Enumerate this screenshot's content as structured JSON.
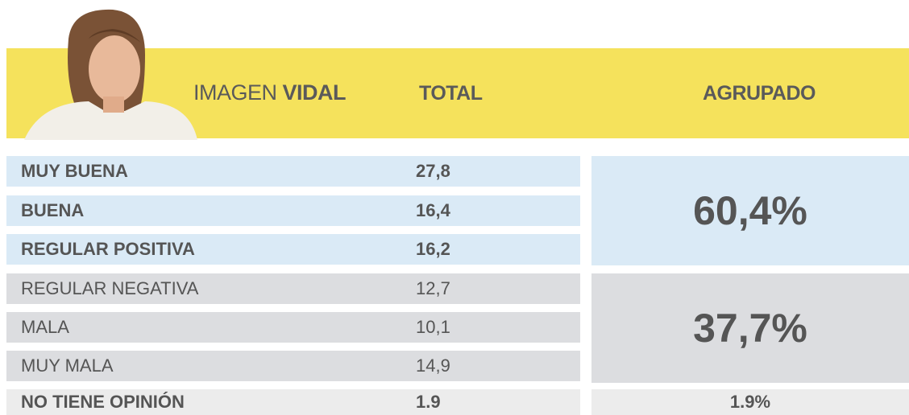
{
  "header": {
    "title_light": "IMAGEN",
    "title_bold": "VIDAL",
    "col_total": "TOTAL",
    "col_grouped": "AGRUPADO"
  },
  "table": {
    "rows": [
      [
        "MUY BUENA",
        "27,8"
      ],
      [
        "BUENA",
        "16,4"
      ],
      [
        "REGULAR POSITIVA",
        "16,2"
      ],
      [
        "REGULAR NEGATIVA",
        "12,7"
      ],
      [
        "MALA",
        "10,1"
      ],
      [
        "MUY MALA",
        "14,9"
      ],
      [
        "NO TIENE OPINIÓN",
        "1.9"
      ]
    ]
  },
  "groups": [
    {
      "label": "60,4%"
    },
    {
      "label": "37,7%"
    },
    {
      "label": "1.9%"
    }
  ]
}
